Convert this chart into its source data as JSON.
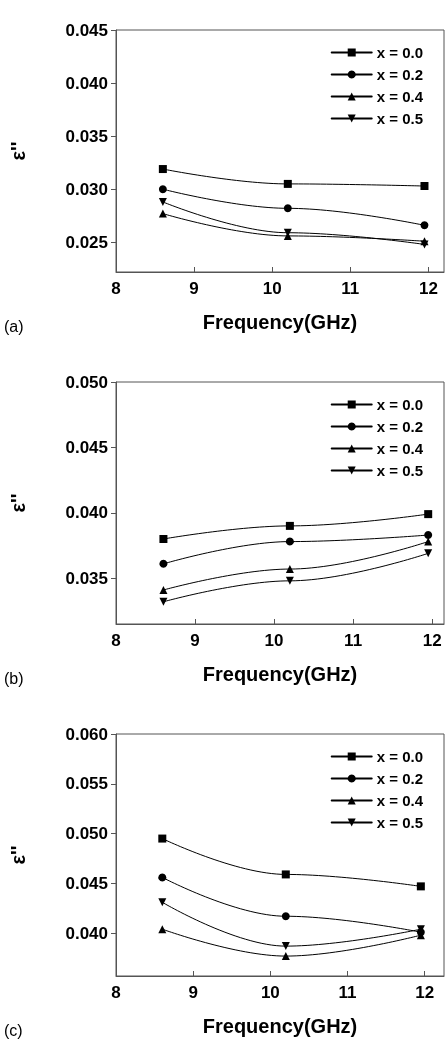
{
  "chart_data": [
    {
      "type": "line",
      "xlabel": "Frequency(GHz)",
      "ylabel": "ε''",
      "annotations": [
        "(a)"
      ],
      "x": [
        8.6,
        10.2,
        11.95
      ],
      "xlim": [
        8,
        12.2
      ],
      "xticks": [
        8,
        9,
        10,
        11,
        12
      ],
      "ylim": [
        0.0222,
        0.045
      ],
      "yticks": [
        0.025,
        {
          "value": 0.03,
          "label": "0.030"
        },
        0.035,
        {
          "value": 0.04,
          "label": "0.040"
        },
        0.045
      ],
      "grid": false,
      "legend": "top right",
      "line_style": "solid",
      "series": [
        {
          "name": "x = 0.0",
          "color": "#000000",
          "marker": "square",
          "values": [
            0.0319,
            0.0305,
            0.0303
          ]
        },
        {
          "name": "x = 0.2",
          "color": "#000000",
          "marker": "circle",
          "values": [
            0.03,
            0.0282,
            0.0266
          ]
        },
        {
          "name": "x = 0.4",
          "color": "#000000",
          "marker": "triangle",
          "values": [
            0.0277,
            0.0256,
            0.0251
          ]
        },
        {
          "name": "x = 0.5",
          "color": "#000000",
          "marker": "triangle-down",
          "values": [
            0.0288,
            0.0259,
            0.0248
          ]
        }
      ]
    },
    {
      "type": "line",
      "xlabel": "Frequency(GHz)",
      "ylabel": "ε''",
      "annotations": [
        "(b)"
      ],
      "x": [
        8.6,
        10.2,
        11.95
      ],
      "xlim": [
        8,
        12.15
      ],
      "xticks": [
        8,
        9,
        10,
        11,
        12
      ],
      "ylim": [
        0.0315,
        0.05
      ],
      "yticks": [
        0.035,
        {
          "value": 0.04,
          "label": "0.040"
        },
        0.045,
        {
          "value": 0.05,
          "label": "0.050"
        }
      ],
      "grid": false,
      "legend": "top right",
      "line_style": "solid",
      "series": [
        {
          "name": "x = 0.0",
          "color": "#000000",
          "marker": "square",
          "values": [
            0.038,
            0.039,
            0.0399
          ]
        },
        {
          "name": "x = 0.2",
          "color": "#000000",
          "marker": "circle",
          "values": [
            0.0361,
            0.0378,
            0.0383
          ]
        },
        {
          "name": "x = 0.4",
          "color": "#000000",
          "marker": "triangle",
          "values": [
            0.0341,
            0.0357,
            0.0378
          ]
        },
        {
          "name": "x = 0.5",
          "color": "#000000",
          "marker": "triangle-down",
          "values": [
            0.0332,
            0.0348,
            0.0369
          ]
        }
      ]
    },
    {
      "type": "line",
      "xlabel": "Frequency(GHz)",
      "ylabel": "ε''",
      "annotations": [
        "(c)"
      ],
      "x": [
        8.6,
        10.2,
        11.95
      ],
      "xlim": [
        8,
        12.25
      ],
      "xticks": [
        8,
        9,
        10,
        11,
        12
      ],
      "ylim": [
        0.0357,
        0.06
      ],
      "yticks": [
        {
          "value": 0.04,
          "label": "0.040"
        },
        0.045,
        {
          "value": 0.05,
          "label": "0.050"
        },
        0.055,
        {
          "value": 0.06,
          "label": "0.060"
        }
      ],
      "grid": false,
      "legend": "top right",
      "line_style": "solid",
      "series": [
        {
          "name": "x = 0.0",
          "color": "#000000",
          "marker": "square",
          "values": [
            0.0495,
            0.0459,
            0.0447
          ]
        },
        {
          "name": "x = 0.2",
          "color": "#000000",
          "marker": "circle",
          "values": [
            0.0456,
            0.0417,
            0.0401
          ]
        },
        {
          "name": "x = 0.4",
          "color": "#000000",
          "marker": "triangle",
          "values": [
            0.0404,
            0.0377,
            0.0398
          ]
        },
        {
          "name": "x = 0.5",
          "color": "#000000",
          "marker": "triangle-down",
          "values": [
            0.0431,
            0.0387,
            0.0404
          ]
        }
      ]
    }
  ]
}
